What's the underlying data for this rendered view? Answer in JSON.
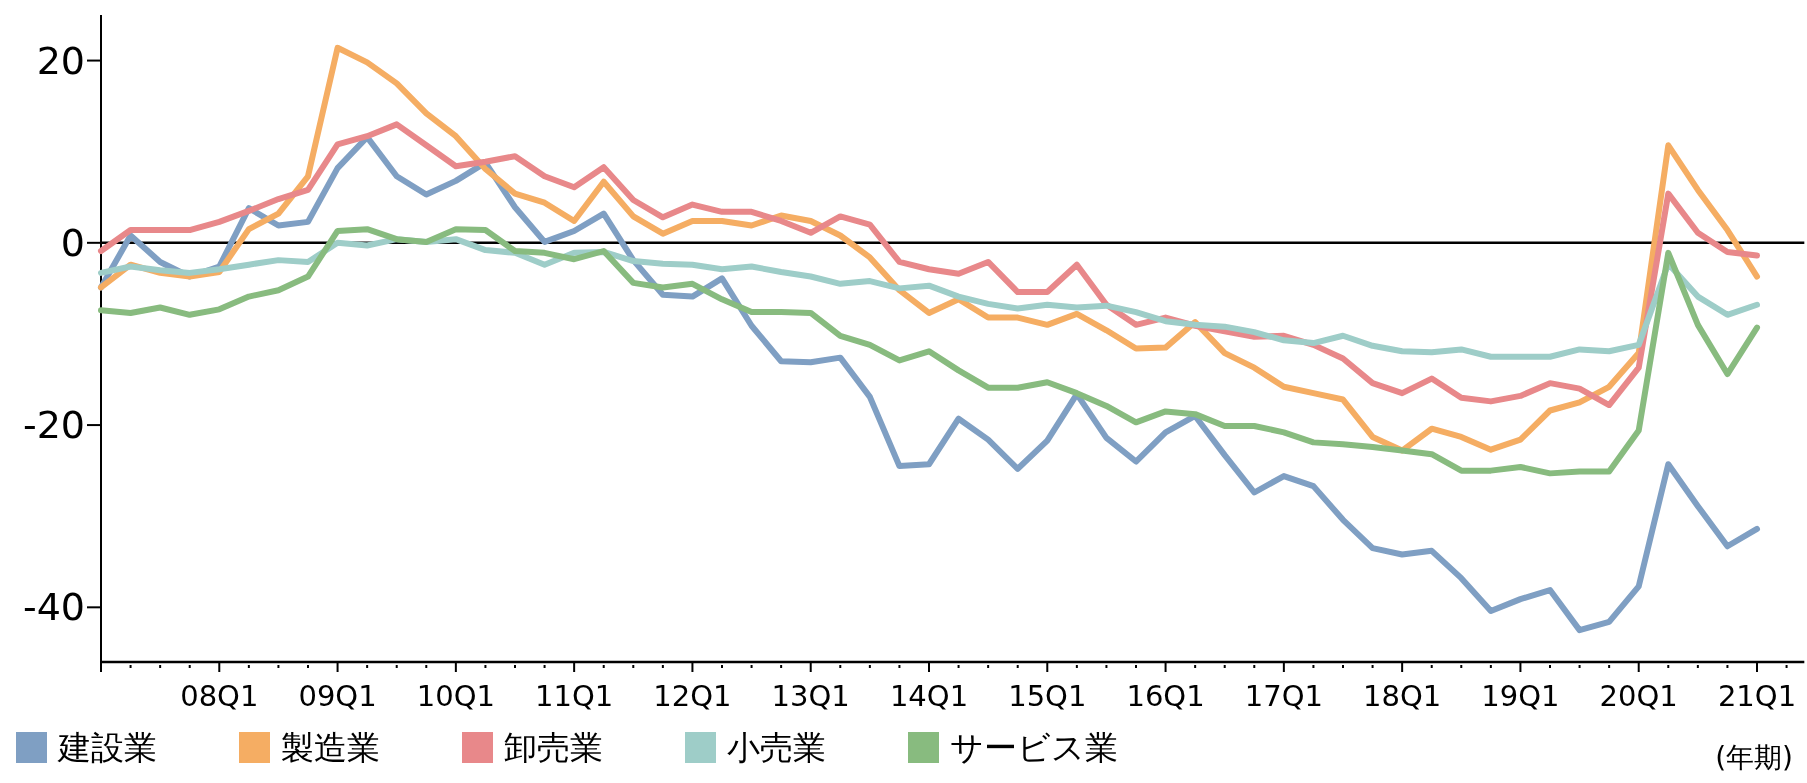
{
  "chart_data": {
    "type": "line",
    "categories": [
      null,
      null,
      null,
      null,
      "08Q1",
      null,
      null,
      null,
      "09Q1",
      null,
      null,
      null,
      "10Q1",
      null,
      null,
      null,
      "11Q1",
      null,
      null,
      null,
      "12Q1",
      null,
      null,
      null,
      "13Q1",
      null,
      null,
      null,
      "14Q1",
      null,
      null,
      null,
      "15Q1",
      null,
      null,
      null,
      "16Q1",
      null,
      null,
      null,
      "17Q1",
      null,
      null,
      null,
      "18Q1",
      null,
      null,
      null,
      "19Q1",
      null,
      null,
      null,
      "20Q1",
      null,
      null,
      null,
      "21Q1"
    ],
    "series": [
      {
        "name": "建設業",
        "color": "#7f9fc3",
        "values": [
          -4.9,
          0.8,
          -2.1,
          -3.7,
          -2.6,
          3.8,
          1.9,
          2.3,
          8.2,
          11.6,
          7.3,
          5.3,
          6.8,
          8.8,
          3.9,
          0.1,
          1.3,
          3.2,
          -1.9,
          -5.7,
          -5.9,
          -3.9,
          -9.1,
          -13.0,
          -13.1,
          -12.6,
          -16.9,
          -24.5,
          -24.3,
          -19.3,
          -21.6,
          -24.8,
          -21.7,
          -16.6,
          -21.4,
          -24.0,
          -20.8,
          -19.0,
          -23.3,
          -27.4,
          -25.6,
          -26.7,
          -30.4,
          -33.5,
          -34.2,
          -33.8,
          -36.8,
          -40.4,
          -39.1,
          -38.1,
          -42.5,
          -41.6,
          -37.7,
          -24.3,
          -28.9,
          -33.3,
          -31.4
        ]
      },
      {
        "name": "製造業",
        "color": "#f5ad63",
        "values": [
          -4.9,
          -2.4,
          -3.3,
          -3.7,
          -3.2,
          1.5,
          3.2,
          7.3,
          21.4,
          19.8,
          17.5,
          14.2,
          11.7,
          8.1,
          5.4,
          4.4,
          2.4,
          6.7,
          2.9,
          1.0,
          2.4,
          2.4,
          1.9,
          3.0,
          2.4,
          0.8,
          -1.6,
          -5.2,
          -7.7,
          -6.2,
          -8.2,
          -8.2,
          -9.0,
          -7.8,
          -9.6,
          -11.6,
          -11.5,
          -8.7,
          -12.1,
          -13.7,
          -15.8,
          -16.5,
          -17.2,
          -21.3,
          -22.8,
          -20.4,
          -21.3,
          -22.7,
          -21.6,
          -18.4,
          -17.5,
          -15.8,
          -12.1,
          10.7,
          5.8,
          1.4,
          -3.7
        ]
      },
      {
        "name": "卸売業",
        "color": "#e8888a",
        "values": [
          -0.9,
          1.4,
          1.4,
          1.4,
          2.3,
          3.5,
          4.8,
          5.8,
          10.8,
          11.7,
          13.0,
          10.7,
          8.4,
          8.9,
          9.5,
          7.3,
          6.1,
          8.3,
          4.7,
          2.8,
          4.2,
          3.4,
          3.4,
          2.4,
          1.1,
          2.9,
          2.0,
          -2.1,
          -2.9,
          -3.4,
          -2.1,
          -5.4,
          -5.4,
          -2.4,
          -6.8,
          -9.0,
          -8.2,
          -9.1,
          -9.7,
          -10.3,
          -10.2,
          -11.2,
          -12.7,
          -15.4,
          -16.5,
          -14.9,
          -17.0,
          -17.4,
          -16.8,
          -15.4,
          -16.0,
          -17.8,
          -13.7,
          5.4,
          1.1,
          -1.0,
          -1.4
        ]
      },
      {
        "name": "小売業",
        "color": "#9ecdc8",
        "values": [
          -3.3,
          -2.6,
          -3.0,
          -3.3,
          -2.9,
          -2.4,
          -1.9,
          -2.1,
          0,
          -0.3,
          0.4,
          0.1,
          0.4,
          -0.8,
          -1.1,
          -2.4,
          -1.1,
          -1.0,
          -2.0,
          -2.3,
          -2.4,
          -2.9,
          -2.6,
          -3.2,
          -3.7,
          -4.5,
          -4.2,
          -5.0,
          -4.7,
          -5.9,
          -6.7,
          -7.2,
          -6.8,
          -7.1,
          -6.9,
          -7.6,
          -8.6,
          -9.0,
          -9.2,
          -9.8,
          -10.7,
          -11.0,
          -10.2,
          -11.3,
          -11.9,
          -12.0,
          -11.7,
          -12.5,
          -12.5,
          -12.5,
          -11.7,
          -11.9,
          -11.2,
          -2.3,
          -5.9,
          -7.9,
          -6.8
        ]
      },
      {
        "name": "サービス業",
        "color": "#88bb7f",
        "values": [
          -7.4,
          -7.7,
          -7.1,
          -7.9,
          -7.3,
          -5.9,
          -5.2,
          -3.7,
          1.3,
          1.5,
          0.4,
          0.1,
          1.5,
          1.4,
          -0.9,
          -1.1,
          -1.8,
          -0.9,
          -4.4,
          -4.9,
          -4.5,
          -6.2,
          -7.6,
          -7.6,
          -7.7,
          -10.2,
          -11.2,
          -12.9,
          -11.9,
          -14.0,
          -15.9,
          -15.9,
          -15.3,
          -16.5,
          -17.9,
          -19.7,
          -18.5,
          -18.8,
          -20.1,
          -20.1,
          -20.8,
          -21.9,
          -22.1,
          -22.4,
          -22.8,
          -23.2,
          -25.0,
          -25.0,
          -24.6,
          -25.3,
          -25.1,
          -25.1,
          -20.6,
          -1.1,
          -9.0,
          -14.4,
          -9.3
        ]
      }
    ],
    "ylim": [
      -46,
      25
    ],
    "yticks": [
      -40,
      -20,
      0,
      20
    ],
    "ref_lines": [
      {
        "axis": "y",
        "value": 0,
        "color": "#000000"
      }
    ],
    "annotations": [
      "(年期)"
    ],
    "grid": false,
    "legend": "bottom",
    "marker": "none",
    "line_style": "solid"
  }
}
